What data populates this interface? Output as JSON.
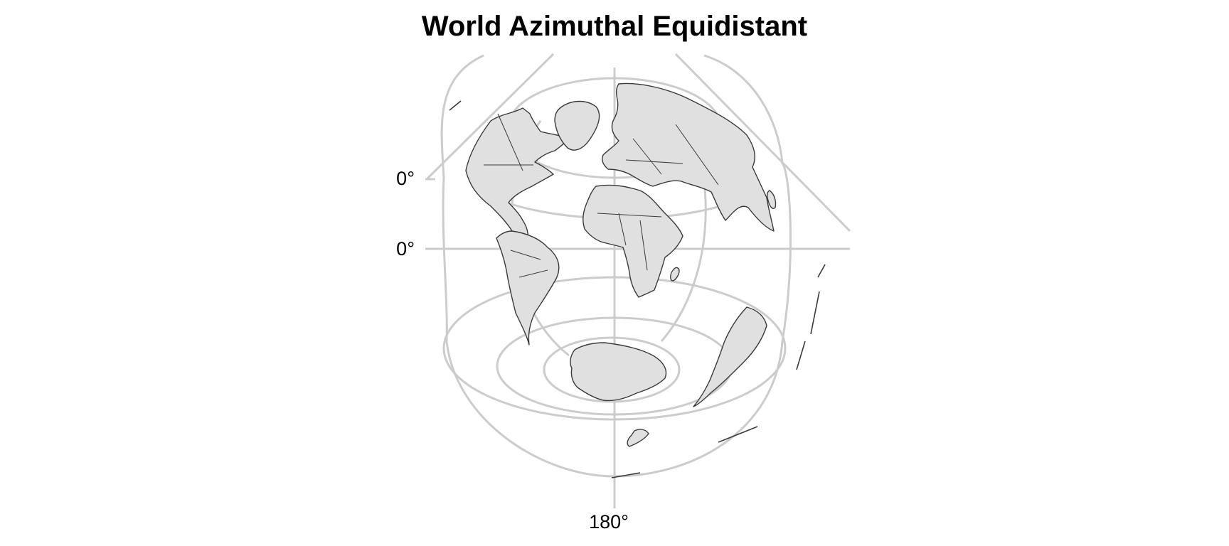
{
  "title": "World Azimuthal Equidistant",
  "axes": {
    "y_tick_labels": [
      "0°",
      "0°"
    ],
    "x_tick_labels": [
      "180°"
    ]
  },
  "style": {
    "land_fill": "#e0e0e0",
    "land_stroke": "#3a3a3a",
    "graticule_color": "#cccccc",
    "background": "#ffffff"
  },
  "features": [
    "north-america",
    "greenland",
    "south-america",
    "europe",
    "africa",
    "asia",
    "australia",
    "antarctica",
    "madagascar",
    "new-zealand",
    "japan"
  ]
}
